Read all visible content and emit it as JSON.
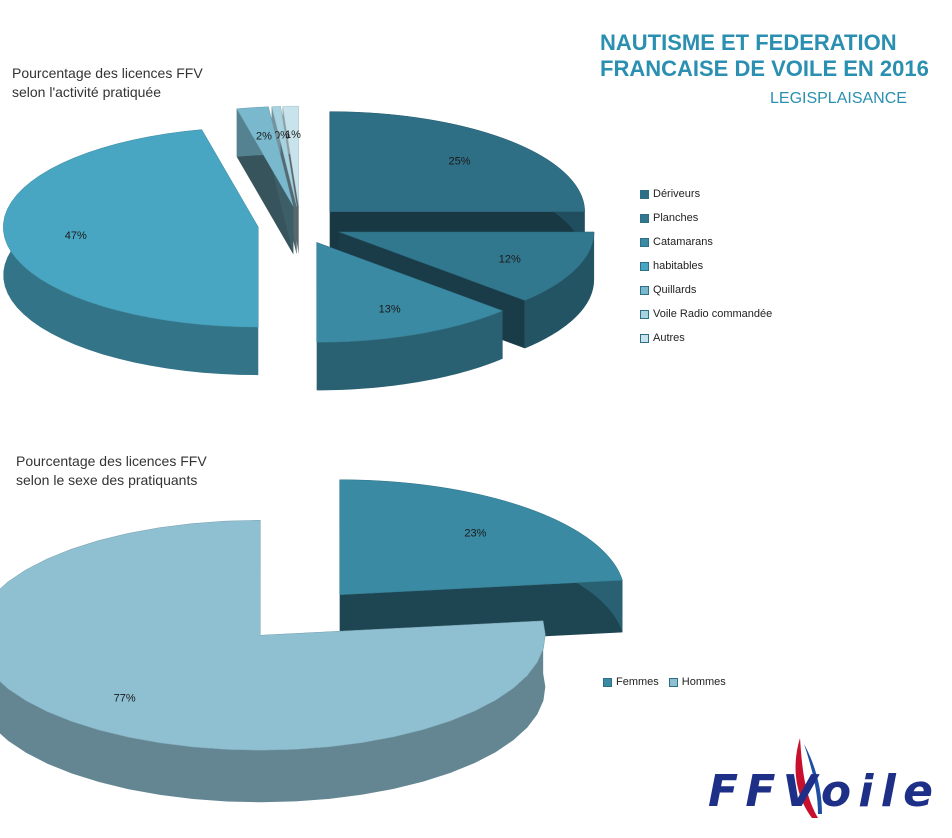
{
  "header": {
    "title_line1": "NAUTISME ET FEDERATION",
    "title_line2": "FRANCAISE DE VOILE EN 2016",
    "subtitle": "LEGISPLAISANCE"
  },
  "chart_data": [
    {
      "type": "pie",
      "title_line1": "Pourcentage des licences FFV",
      "title_line2": "selon l'activité pratiquée",
      "categories": [
        "Dériveurs",
        "Planches",
        "Catamarans",
        "habitables",
        "Quillards",
        "Voile Radio commandée",
        "Autres"
      ],
      "values": [
        25,
        12,
        13,
        47,
        2,
        0,
        1
      ],
      "data_labels": [
        "25%",
        "12%",
        "13%",
        "47%",
        "2%",
        "0%",
        "1%"
      ],
      "colors": [
        "#2f6f86",
        "#31788f",
        "#3a8aa3",
        "#49a6c2",
        "#7ab9cd",
        "#a7d2e0",
        "#c9e3ec"
      ],
      "legend": "right",
      "exploded": true,
      "style": "3d"
    },
    {
      "type": "pie",
      "title_line1": "Pourcentage des licences FFV",
      "title_line2": "selon le sexe des pratiquants",
      "categories": [
        "Femmes",
        "Hommes"
      ],
      "values": [
        23,
        77
      ],
      "data_labels": [
        "23%",
        "77%"
      ],
      "colors": [
        "#3a8aa3",
        "#8fc0d1"
      ],
      "legend": "right",
      "exploded": true,
      "style": "3d"
    }
  ],
  "logo": {
    "text": "FFVoile"
  }
}
